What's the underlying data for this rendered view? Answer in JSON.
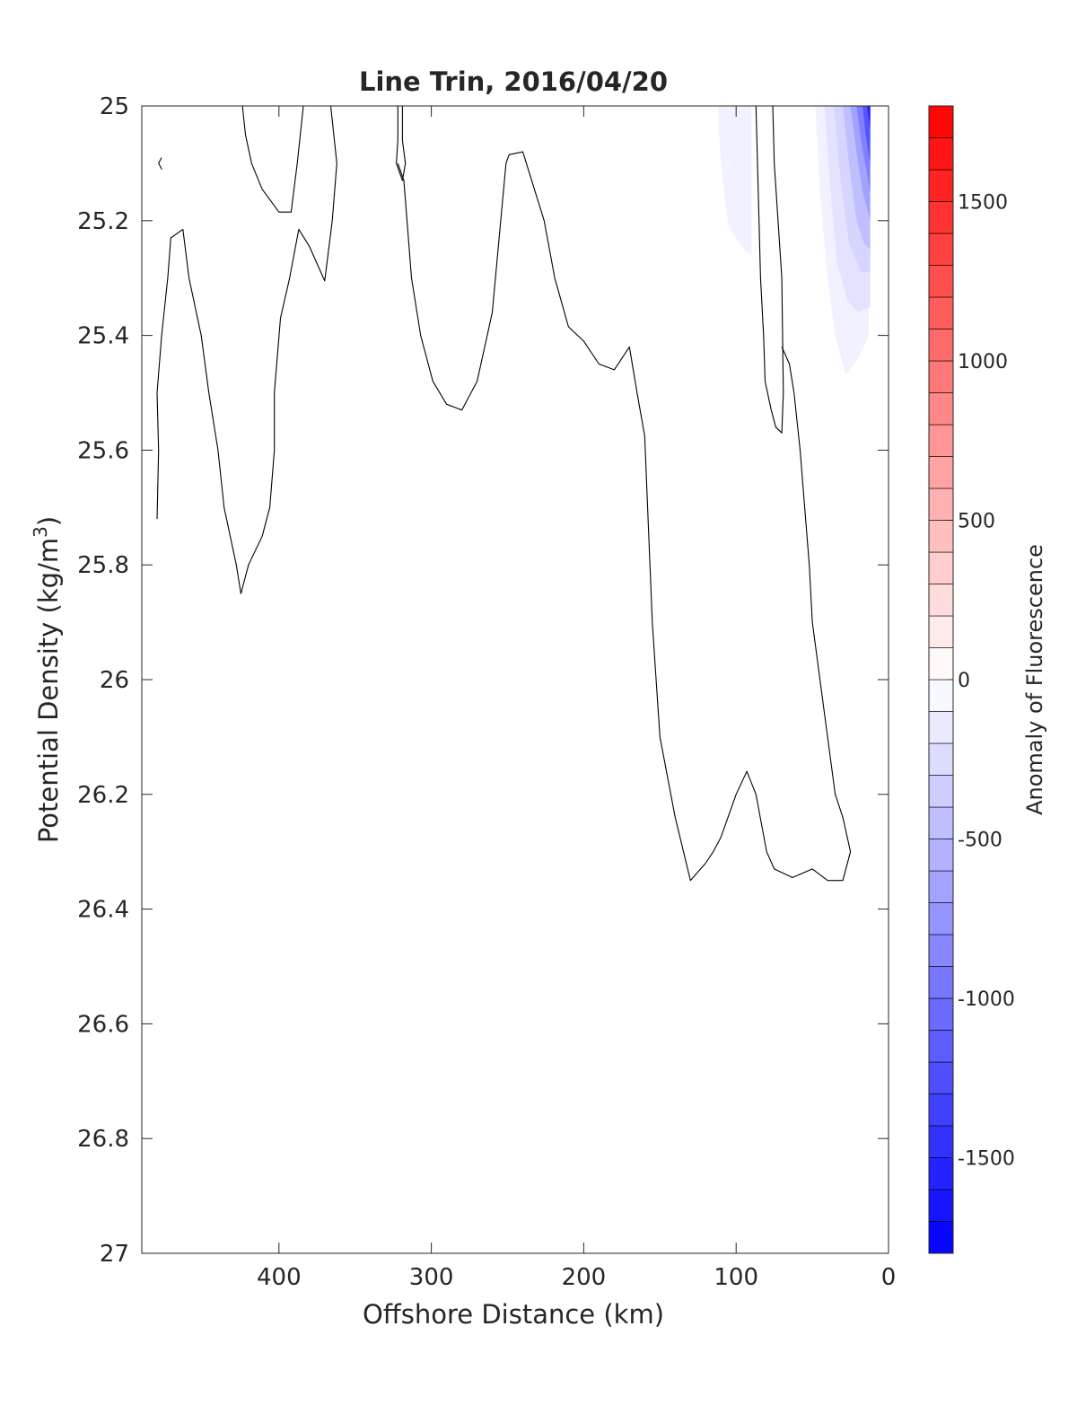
{
  "chart_data": {
    "type": "contour",
    "title": "Line Trin, 2016/04/20",
    "xlabel": "Offshore Distance (km)",
    "ylabel_main": "Potential Density (kg/m",
    "ylabel_sup": "3",
    "ylabel_close": ")",
    "xlim": [
      490,
      0
    ],
    "ylim": [
      25,
      27
    ],
    "y_reversed": true,
    "x_reversed": true,
    "x_ticks": [
      400,
      300,
      200,
      100,
      0
    ],
    "x_tick_labels": [
      "400",
      "300",
      "200",
      "100",
      "0"
    ],
    "y_ticks": [
      25,
      25.2,
      25.4,
      25.6,
      25.8,
      26,
      26.2,
      26.4,
      26.6,
      26.8,
      27
    ],
    "y_tick_labels": [
      "25",
      "25.2",
      "25.4",
      "25.6",
      "25.8",
      "26",
      "26.2",
      "26.4",
      "26.6",
      "26.8",
      "27"
    ],
    "colorbar": {
      "label": "Anomaly of Fluorescence",
      "range": [
        -1800,
        1800
      ],
      "levels": 36,
      "ticks": [
        1500,
        1000,
        500,
        0,
        -500,
        -1000,
        -1500
      ],
      "tick_labels": [
        "1500",
        "1000",
        "500",
        "0",
        "-500",
        "-1000",
        "-1500"
      ],
      "colormap": "blue-white-red",
      "color_min": "#0000ff",
      "color_mid": "#ffffff",
      "color_max": "#ff0000"
    },
    "filled_regions": [
      {
        "value": -100,
        "points": [
          [
            112,
            25.0
          ],
          [
            110,
            25.1
          ],
          [
            105,
            25.21
          ],
          [
            95,
            25.25
          ],
          [
            90,
            25.26
          ],
          [
            90,
            25.0
          ]
        ]
      },
      {
        "value": -100,
        "points": [
          [
            48,
            25.0
          ],
          [
            45,
            25.15
          ],
          [
            40,
            25.3
          ],
          [
            35,
            25.4
          ],
          [
            28,
            25.47
          ],
          [
            20,
            25.44
          ],
          [
            13,
            25.4
          ],
          [
            12,
            25.0
          ]
        ]
      },
      {
        "value": -200,
        "points": [
          [
            42,
            25.0
          ],
          [
            38,
            25.15
          ],
          [
            34,
            25.27
          ],
          [
            27,
            25.34
          ],
          [
            20,
            25.36
          ],
          [
            12,
            25.35
          ],
          [
            12,
            25.0
          ]
        ]
      },
      {
        "value": -300,
        "points": [
          [
            36,
            25.0
          ],
          [
            31,
            25.14
          ],
          [
            26,
            25.24
          ],
          [
            18,
            25.29
          ],
          [
            12,
            25.29
          ],
          [
            12,
            25.0
          ]
        ]
      },
      {
        "value": -450,
        "points": [
          [
            30,
            25.0
          ],
          [
            26,
            25.1
          ],
          [
            21,
            25.2
          ],
          [
            16,
            25.24
          ],
          [
            12,
            25.25
          ],
          [
            12,
            25.0
          ]
        ]
      },
      {
        "value": -650,
        "points": [
          [
            25,
            25.0
          ],
          [
            21,
            25.08
          ],
          [
            17,
            25.15
          ],
          [
            12,
            25.2
          ],
          [
            12,
            25.0
          ]
        ]
      },
      {
        "value": -900,
        "points": [
          [
            21,
            25.0
          ],
          [
            18,
            25.06
          ],
          [
            14,
            25.12
          ],
          [
            12,
            25.15
          ],
          [
            12,
            25.0
          ]
        ]
      },
      {
        "value": -1200,
        "points": [
          [
            17,
            25.0
          ],
          [
            15,
            25.05
          ],
          [
            12,
            25.1
          ],
          [
            12,
            25.0
          ]
        ]
      },
      {
        "value": -1600,
        "points": [
          [
            14,
            25.0
          ],
          [
            12,
            25.04
          ],
          [
            12,
            25.0
          ]
        ]
      }
    ],
    "contour_lines": [
      [
        [
          479,
          25.1
        ],
        [
          477,
          25.11
        ],
        [
          479,
          25.1
        ],
        [
          477,
          25.09
        ]
      ],
      [
        [
          480,
          25.72
        ],
        [
          479,
          25.6
        ],
        [
          480,
          25.5
        ],
        [
          477,
          25.4
        ],
        [
          473,
          25.3
        ],
        [
          471,
          25.23
        ],
        [
          463,
          25.215
        ],
        [
          459,
          25.3
        ],
        [
          451,
          25.4
        ],
        [
          446,
          25.5
        ],
        [
          440,
          25.6
        ],
        [
          436,
          25.7
        ],
        [
          428,
          25.8
        ],
        [
          425,
          25.85
        ],
        [
          420,
          25.8
        ],
        [
          411,
          25.75
        ],
        [
          406,
          25.7
        ],
        [
          403,
          25.6
        ],
        [
          403,
          25.5
        ],
        [
          399,
          25.37
        ],
        [
          393,
          25.3
        ],
        [
          387,
          25.215
        ],
        [
          380,
          25.245
        ],
        [
          370,
          25.305
        ],
        [
          365,
          25.2
        ],
        [
          362,
          25.1
        ],
        [
          366,
          25.0
        ]
      ],
      [
        [
          424,
          25.0
        ],
        [
          422,
          25.05
        ],
        [
          418,
          25.1
        ],
        [
          411,
          25.145
        ],
        [
          400,
          25.185
        ],
        [
          392,
          25.185
        ],
        [
          388,
          25.1
        ],
        [
          384,
          25.0
        ]
      ],
      [
        [
          319,
          25.0
        ],
        [
          319,
          25.06
        ],
        [
          317,
          25.1
        ],
        [
          319,
          25.13
        ],
        [
          323,
          25.1
        ],
        [
          322,
          25.06
        ],
        [
          322,
          25.0
        ]
      ],
      [
        [
          322,
          25.1
        ],
        [
          318,
          25.13
        ],
        [
          313,
          25.3
        ],
        [
          307,
          25.4
        ],
        [
          299,
          25.48
        ],
        [
          290,
          25.52
        ],
        [
          280,
          25.53
        ],
        [
          270,
          25.48
        ],
        [
          260,
          25.36
        ],
        [
          251,
          25.1
        ],
        [
          249,
          25.085
        ],
        [
          240,
          25.08
        ],
        [
          226,
          25.2
        ],
        [
          219,
          25.3
        ],
        [
          210,
          25.385
        ],
        [
          200,
          25.41
        ],
        [
          190,
          25.45
        ],
        [
          180,
          25.46
        ],
        [
          170,
          25.42
        ],
        [
          165,
          25.5
        ],
        [
          160,
          25.575
        ],
        [
          155,
          25.9
        ],
        [
          150,
          26.1
        ],
        [
          140,
          26.24
        ],
        [
          130,
          26.35
        ],
        [
          120,
          26.32
        ],
        [
          115,
          26.3
        ],
        [
          110,
          26.275
        ],
        [
          100,
          26.2
        ],
        [
          93,
          26.16
        ],
        [
          87,
          26.2
        ],
        [
          80,
          26.3
        ],
        [
          75,
          26.33
        ],
        [
          63,
          26.345
        ],
        [
          50,
          26.33
        ],
        [
          40,
          26.35
        ],
        [
          30,
          26.35
        ],
        [
          25,
          26.3
        ],
        [
          30,
          26.24
        ],
        [
          35,
          26.2
        ],
        [
          40,
          26.1
        ],
        [
          45,
          26.0
        ],
        [
          50,
          25.9
        ],
        [
          52,
          25.8
        ],
        [
          55,
          25.7
        ],
        [
          58,
          25.6
        ],
        [
          62,
          25.5
        ],
        [
          65,
          25.45
        ],
        [
          70,
          25.42
        ]
      ],
      [
        [
          87,
          25.0
        ],
        [
          86,
          25.1
        ],
        [
          84,
          25.3
        ],
        [
          82,
          25.4
        ],
        [
          81,
          25.48
        ],
        [
          77,
          25.53
        ],
        [
          74,
          25.56
        ],
        [
          70,
          25.57
        ],
        [
          69,
          25.5
        ],
        [
          70,
          25.3
        ],
        [
          75,
          25.1
        ],
        [
          76,
          25.0
        ]
      ]
    ]
  }
}
